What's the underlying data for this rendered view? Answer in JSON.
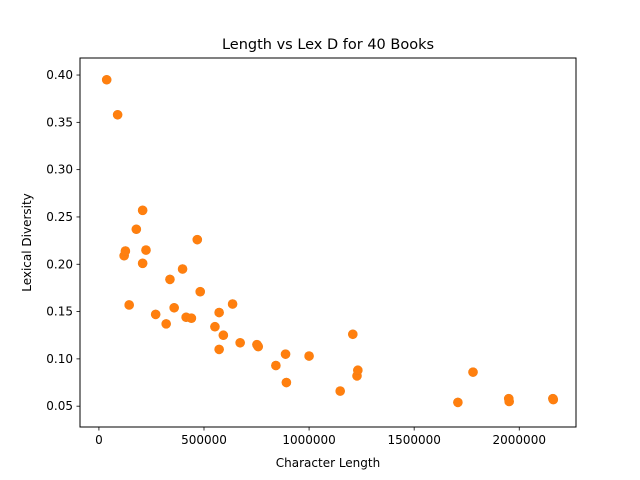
{
  "chart_data": {
    "type": "scatter",
    "title": "Length vs Lex D for 40 Books",
    "xlabel": "Character Length",
    "ylabel": "Lexical Diversity",
    "xlim": [
      -90000,
      2270000
    ],
    "ylim": [
      0.028,
      0.418
    ],
    "xticks": [
      0,
      500000,
      1000000,
      1500000,
      2000000
    ],
    "xtick_labels": [
      "0",
      "500000",
      "1000000",
      "1500000",
      "2000000"
    ],
    "yticks": [
      0.05,
      0.1,
      0.15,
      0.2,
      0.25,
      0.3,
      0.35,
      0.4
    ],
    "ytick_labels": [
      "0.05",
      "0.10",
      "0.15",
      "0.20",
      "0.25",
      "0.30",
      "0.35",
      "0.40"
    ],
    "grid": false,
    "marker_color": "#ff7f0e",
    "underlay_color": "#1f77b4",
    "points": [
      {
        "x": 37000,
        "y": 0.395
      },
      {
        "x": 89000,
        "y": 0.358
      },
      {
        "x": 120000,
        "y": 0.209
      },
      {
        "x": 126000,
        "y": 0.214
      },
      {
        "x": 144000,
        "y": 0.157
      },
      {
        "x": 178000,
        "y": 0.237
      },
      {
        "x": 208000,
        "y": 0.257
      },
      {
        "x": 208000,
        "y": 0.201
      },
      {
        "x": 224000,
        "y": 0.215
      },
      {
        "x": 270000,
        "y": 0.147
      },
      {
        "x": 320000,
        "y": 0.137
      },
      {
        "x": 338000,
        "y": 0.184
      },
      {
        "x": 358000,
        "y": 0.154
      },
      {
        "x": 398000,
        "y": 0.195
      },
      {
        "x": 415000,
        "y": 0.144
      },
      {
        "x": 440000,
        "y": 0.143
      },
      {
        "x": 468000,
        "y": 0.226
      },
      {
        "x": 482000,
        "y": 0.171
      },
      {
        "x": 552000,
        "y": 0.134
      },
      {
        "x": 572000,
        "y": 0.11
      },
      {
        "x": 572000,
        "y": 0.149
      },
      {
        "x": 592000,
        "y": 0.125
      },
      {
        "x": 636000,
        "y": 0.158
      },
      {
        "x": 672000,
        "y": 0.117
      },
      {
        "x": 752000,
        "y": 0.115
      },
      {
        "x": 758000,
        "y": 0.113
      },
      {
        "x": 842000,
        "y": 0.093
      },
      {
        "x": 888000,
        "y": 0.105
      },
      {
        "x": 892000,
        "y": 0.075
      },
      {
        "x": 1000000,
        "y": 0.103
      },
      {
        "x": 1148000,
        "y": 0.066
      },
      {
        "x": 1208000,
        "y": 0.126
      },
      {
        "x": 1228000,
        "y": 0.082
      },
      {
        "x": 1232000,
        "y": 0.088
      },
      {
        "x": 1708000,
        "y": 0.054
      },
      {
        "x": 1780000,
        "y": 0.086
      },
      {
        "x": 1950000,
        "y": 0.058
      },
      {
        "x": 1952000,
        "y": 0.055
      },
      {
        "x": 2160000,
        "y": 0.058
      },
      {
        "x": 2162000,
        "y": 0.057
      }
    ]
  }
}
